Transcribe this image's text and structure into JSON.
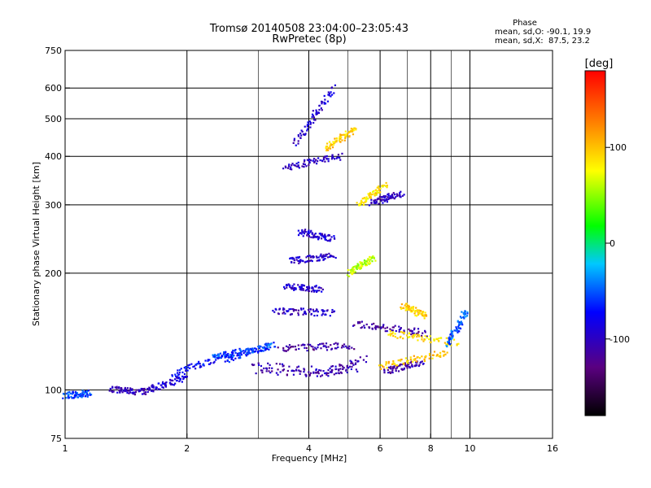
{
  "chart_data": {
    "type": "scatter",
    "title": "Tromsø 20140508 23:04:00–23:05:43",
    "subtitle": "RwPretec (8p)",
    "xlabel": "Frequency [MHz]",
    "ylabel": "Stationary phase Virtual Height [km]",
    "x_scale": "log",
    "y_scale": "log",
    "xlim": [
      1,
      16
    ],
    "ylim": [
      75,
      750
    ],
    "x_ticks": [
      "1",
      "2",
      "4",
      "6",
      "8",
      "10",
      "16"
    ],
    "x_tick_values": [
      1,
      2,
      4,
      6,
      8,
      10,
      16
    ],
    "x_minor_ticks": [
      3,
      5,
      7,
      9
    ],
    "y_ticks": [
      "75",
      "100",
      "200",
      "300",
      "400",
      "500",
      "600",
      "750"
    ],
    "y_tick_values": [
      75,
      100,
      200,
      300,
      400,
      500,
      600,
      750
    ],
    "grid": true,
    "stats": {
      "heading": "Phase",
      "line1": "mean, sd,O: -90.1, 19.9",
      "line2": "mean, sd,X:  87.5, 23.2"
    },
    "colorbar": {
      "label": "[deg]",
      "range": [
        -180,
        180
      ],
      "ticks": [
        "100",
        "0",
        "-100"
      ],
      "tick_values": [
        100,
        0,
        -100
      ],
      "colors": [
        "#000000",
        "#5a0080",
        "#0000ff",
        "#00c8ff",
        "#00ff00",
        "#ffff00",
        "#ff8000",
        "#ff0000"
      ]
    },
    "series": [
      {
        "trace_kind": "O-mode (blue/purple, phase about -90)",
        "segments": [
          {
            "x": [
              1.3,
              1.6
            ],
            "y": [
              100,
              99
            ],
            "phase": -100
          },
          {
            "x": [
              1.6,
              2.0
            ],
            "y": [
              100,
              108
            ],
            "phase": -90
          },
          {
            "x": [
              1.85,
              2.6
            ],
            "y": [
              110,
              125
            ],
            "phase": -75
          },
          {
            "x": [
              2.5,
              3.2
            ],
            "y": [
              120,
              130
            ],
            "phase": -70
          },
          {
            "x": [
              2.9,
              4.4,
              5.5
            ],
            "y": [
              116,
              112,
              120
            ],
            "phase": -105
          },
          {
            "x": [
              3.0,
              4.1,
              5.2
            ],
            "y": [
              112,
              110,
              113
            ],
            "phase": -110
          },
          {
            "x": [
              3.4,
              5.1
            ],
            "y": [
              128,
              130
            ],
            "phase": -115
          },
          {
            "x": [
              3.3,
              4.6
            ],
            "y": [
              160,
              158
            ],
            "phase": -100
          },
          {
            "x": [
              3.5,
              4.3
            ],
            "y": [
              185,
              182
            ],
            "phase": -95
          },
          {
            "x": [
              3.6,
              4.6
            ],
            "y": [
              215,
              222
            ],
            "phase": -95
          },
          {
            "x": [
              3.8,
              4.6
            ],
            "y": [
              255,
              245
            ],
            "phase": -95
          },
          {
            "x": [
              3.5,
              4.8
            ],
            "y": [
              375,
              400
            ],
            "phase": -100
          },
          {
            "x": [
              3.7,
              4.6
            ],
            "y": [
              430,
              600
            ],
            "phase": -95
          },
          {
            "x": [
              5.7,
              6.8
            ],
            "y": [
              305,
              320
            ],
            "phase": -100
          },
          {
            "x": [
              5.2,
              7.8
            ],
            "y": [
              148,
              140
            ],
            "phase": -110
          },
          {
            "x": [
              6.2,
              7.6
            ],
            "y": [
              112,
              118
            ],
            "phase": -110
          }
        ]
      },
      {
        "trace_kind": "X-mode (cyan/yellow, phase about +90)",
        "segments": [
          {
            "x": [
              1.0,
              1.15
            ],
            "y": [
              97,
              98
            ],
            "phase": -55
          },
          {
            "x": [
              2.3,
              3.3
            ],
            "y": [
              122,
              130
            ],
            "phase": -55
          },
          {
            "x": [
              5.0,
              5.8
            ],
            "y": [
              200,
              220
            ],
            "phase": 60
          },
          {
            "x": [
              5.3,
              6.2
            ],
            "y": [
              300,
              340
            ],
            "phase": 85
          },
          {
            "x": [
              6.0,
              8.8
            ],
            "y": [
              115,
              125
            ],
            "phase": 100
          },
          {
            "x": [
              6.3,
              9.3
            ],
            "y": [
              140,
              132
            ],
            "phase": 90
          },
          {
            "x": [
              8.8,
              9.8
            ],
            "y": [
              130,
              160
            ],
            "phase": -50
          },
          {
            "x": [
              4.4,
              5.2
            ],
            "y": [
              420,
              470
            ],
            "phase": 95
          },
          {
            "x": [
              6.8,
              7.8
            ],
            "y": [
              165,
              155
            ],
            "phase": 95
          }
        ]
      }
    ]
  }
}
